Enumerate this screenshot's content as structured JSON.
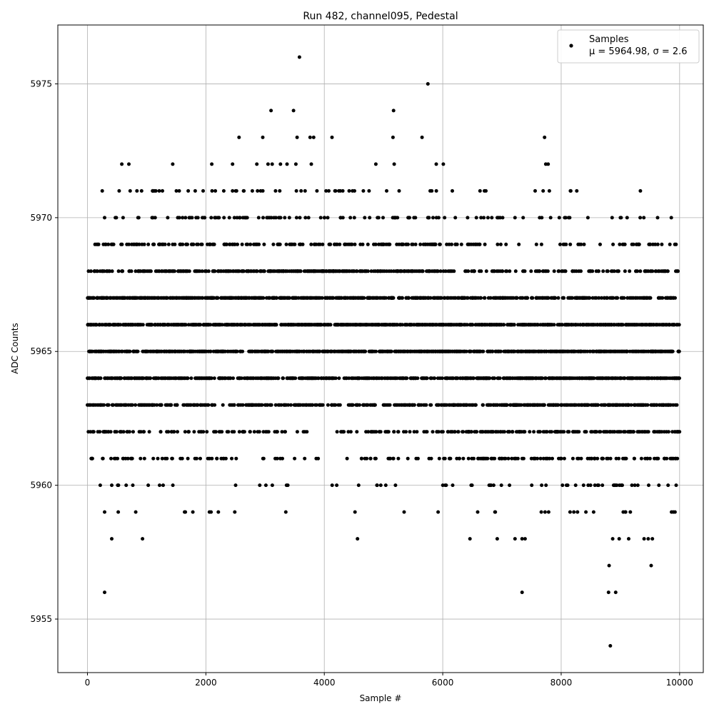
{
  "chart_data": {
    "type": "scatter",
    "title": "Run 482, channel095, Pedestal",
    "xlabel": "Sample #",
    "ylabel": "ADC Counts",
    "xlim": [
      -500,
      10400
    ],
    "ylim": [
      5953,
      5977.2
    ],
    "xticks": [
      0,
      2000,
      4000,
      6000,
      8000,
      10000
    ],
    "yticks": [
      5955,
      5960,
      5965,
      5970,
      5975
    ],
    "grid": true,
    "legend_position": "top-right",
    "marker_color": "#000000",
    "series": [
      {
        "name": "Samples",
        "stats_label": "μ = 5964.98, σ = 2.6",
        "mean": 5964.98,
        "sigma": 2.6,
        "n_samples": 10000,
        "highlighted_points": [
          [
            3580,
            5976
          ],
          [
            5750,
            5975
          ],
          [
            3100,
            5974
          ],
          [
            3480,
            5974
          ],
          [
            5170,
            5974
          ],
          [
            2560,
            5973
          ],
          [
            2960,
            5973
          ],
          [
            3540,
            5973
          ],
          [
            3760,
            5973
          ],
          [
            3820,
            5973
          ],
          [
            4130,
            5973
          ],
          [
            5160,
            5973
          ],
          [
            5650,
            5973
          ],
          [
            7720,
            5973
          ],
          [
            580,
            5972
          ],
          [
            700,
            5972
          ],
          [
            1440,
            5972
          ],
          [
            2100,
            5972
          ],
          [
            2450,
            5972
          ],
          [
            2860,
            5972
          ],
          [
            3050,
            5972
          ],
          [
            3120,
            5972
          ],
          [
            3260,
            5972
          ],
          [
            3370,
            5972
          ],
          [
            3520,
            5972
          ],
          [
            3780,
            5972
          ],
          [
            4870,
            5972
          ],
          [
            5180,
            5972
          ],
          [
            5890,
            5972
          ],
          [
            6010,
            5972
          ],
          [
            7740,
            5972
          ],
          [
            7780,
            5972
          ],
          [
            250,
            5971
          ],
          [
            1100,
            5971
          ],
          [
            2450,
            5971
          ],
          [
            4420,
            5971
          ],
          [
            6630,
            5971
          ],
          [
            7560,
            5971
          ],
          [
            7800,
            5971
          ],
          [
            6970,
            5970
          ],
          [
            8060,
            5970
          ],
          [
            8860,
            5970
          ],
          [
            9000,
            5970
          ],
          [
            6480,
            5969
          ],
          [
            6980,
            5969
          ],
          [
            9550,
            5969
          ],
          [
            9700,
            5969
          ],
          [
            7130,
            5968
          ],
          [
            6850,
            5968
          ],
          [
            290,
            5959
          ],
          [
            520,
            5959
          ],
          [
            2060,
            5959
          ],
          [
            2210,
            5959
          ],
          [
            410,
            5958
          ],
          [
            930,
            5958
          ],
          [
            4560,
            5958
          ],
          [
            6460,
            5958
          ],
          [
            6920,
            5958
          ],
          [
            7220,
            5958
          ],
          [
            7340,
            5958
          ],
          [
            7390,
            5958
          ],
          [
            8870,
            5958
          ],
          [
            8980,
            5958
          ],
          [
            9140,
            5958
          ],
          [
            9400,
            5958
          ],
          [
            9470,
            5958
          ],
          [
            9540,
            5958
          ],
          [
            8810,
            5957
          ],
          [
            9520,
            5957
          ],
          [
            290,
            5956
          ],
          [
            7340,
            5956
          ],
          [
            8800,
            5956
          ],
          [
            8920,
            5956
          ],
          [
            8830,
            5954
          ]
        ]
      }
    ]
  }
}
